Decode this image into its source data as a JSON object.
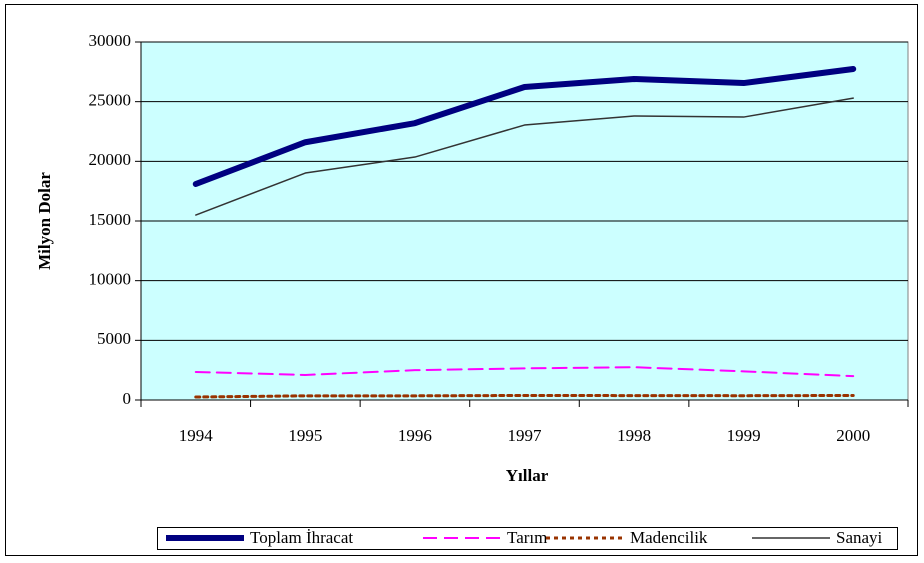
{
  "chart_data": {
    "type": "line",
    "x_label": "Yıllar",
    "y_label": "Milyon Dolar",
    "categories": [
      "1994",
      "1995",
      "1996",
      "1997",
      "1998",
      "1999",
      "2000"
    ],
    "series": [
      {
        "name": "Toplam İhracat",
        "color": "#000080",
        "values": [
          18100,
          21600,
          23200,
          26230,
          26900,
          26560,
          27740
        ]
      },
      {
        "name": "Tarım",
        "color": "#ff00ff",
        "values": [
          2350,
          2100,
          2500,
          2650,
          2750,
          2400,
          2000
        ]
      },
      {
        "name": "Madencilik",
        "color": "#993300",
        "values": [
          250,
          350,
          350,
          380,
          370,
          360,
          380
        ]
      },
      {
        "name": "Sanayi",
        "color": "#333333",
        "values": [
          15500,
          19020,
          20360,
          23040,
          23800,
          23710,
          25300
        ]
      }
    ],
    "ylim": [
      0,
      30000
    ],
    "yticks": [
      0,
      5000,
      10000,
      15000,
      20000,
      25000,
      30000
    ],
    "grid": true,
    "legend": "bottom",
    "background": "#ccffff"
  }
}
